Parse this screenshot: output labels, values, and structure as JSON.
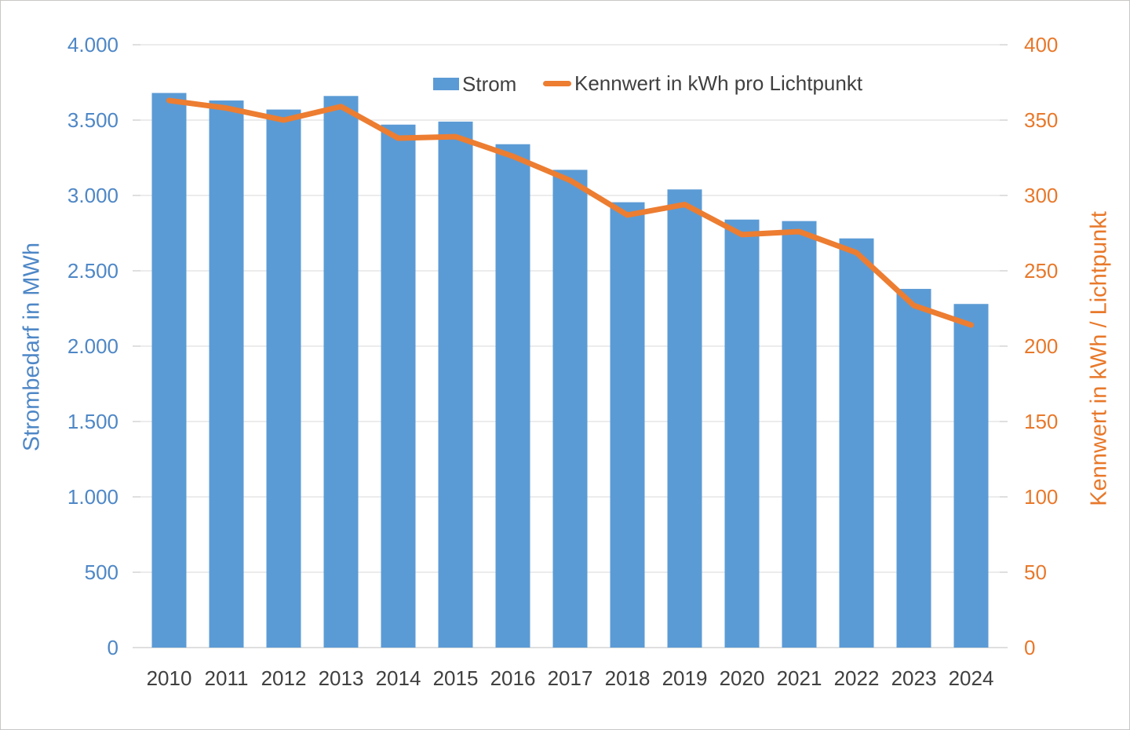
{
  "chart_data": {
    "type": "bar+line",
    "title": "",
    "categories": [
      "2010",
      "2011",
      "2012",
      "2013",
      "2014",
      "2015",
      "2016",
      "2017",
      "2018",
      "2019",
      "2020",
      "2021",
      "2022",
      "2023",
      "2024"
    ],
    "series": [
      {
        "name": "Strom",
        "type": "bar",
        "axis": "left",
        "color": "#5B9BD5",
        "values": [
          3680,
          3630,
          3570,
          3660,
          3470,
          3490,
          3340,
          3170,
          2955,
          3040,
          2840,
          2830,
          2715,
          2380,
          2280
        ]
      },
      {
        "name": "Kennwert in kWh pro Lichtpunkt",
        "type": "line",
        "axis": "right",
        "color": "#ED7D31",
        "values": [
          363,
          358,
          350,
          359,
          338,
          339,
          326,
          310,
          287,
          294,
          274,
          276,
          262,
          227,
          214
        ]
      }
    ],
    "left_axis": {
      "title": "Strombedarf in MWh",
      "lim": [
        0,
        4000
      ],
      "tick_step": 500,
      "tick_labels": [
        "0",
        "500",
        "1.000",
        "1.500",
        "2.000",
        "2.500",
        "3.000",
        "3.500",
        "4.000"
      ],
      "color": "#4E87C6"
    },
    "right_axis": {
      "title": "Kennwert in kWh / Lichtpunkt",
      "lim": [
        0,
        400
      ],
      "tick_step": 50,
      "tick_labels": [
        "0",
        "50",
        "100",
        "150",
        "200",
        "250",
        "300",
        "350",
        "400"
      ],
      "color": "#E8782A"
    },
    "x_axis": {
      "label_color": "#404040"
    },
    "legend": {
      "position": "top",
      "items": [
        "Strom",
        "Kennwert in kWh pro Lichtpunkt"
      ]
    },
    "grid": true,
    "grid_color": "#D9D9D9",
    "axis_line_color": "#BFBFBF",
    "background": "#FFFFFF"
  }
}
